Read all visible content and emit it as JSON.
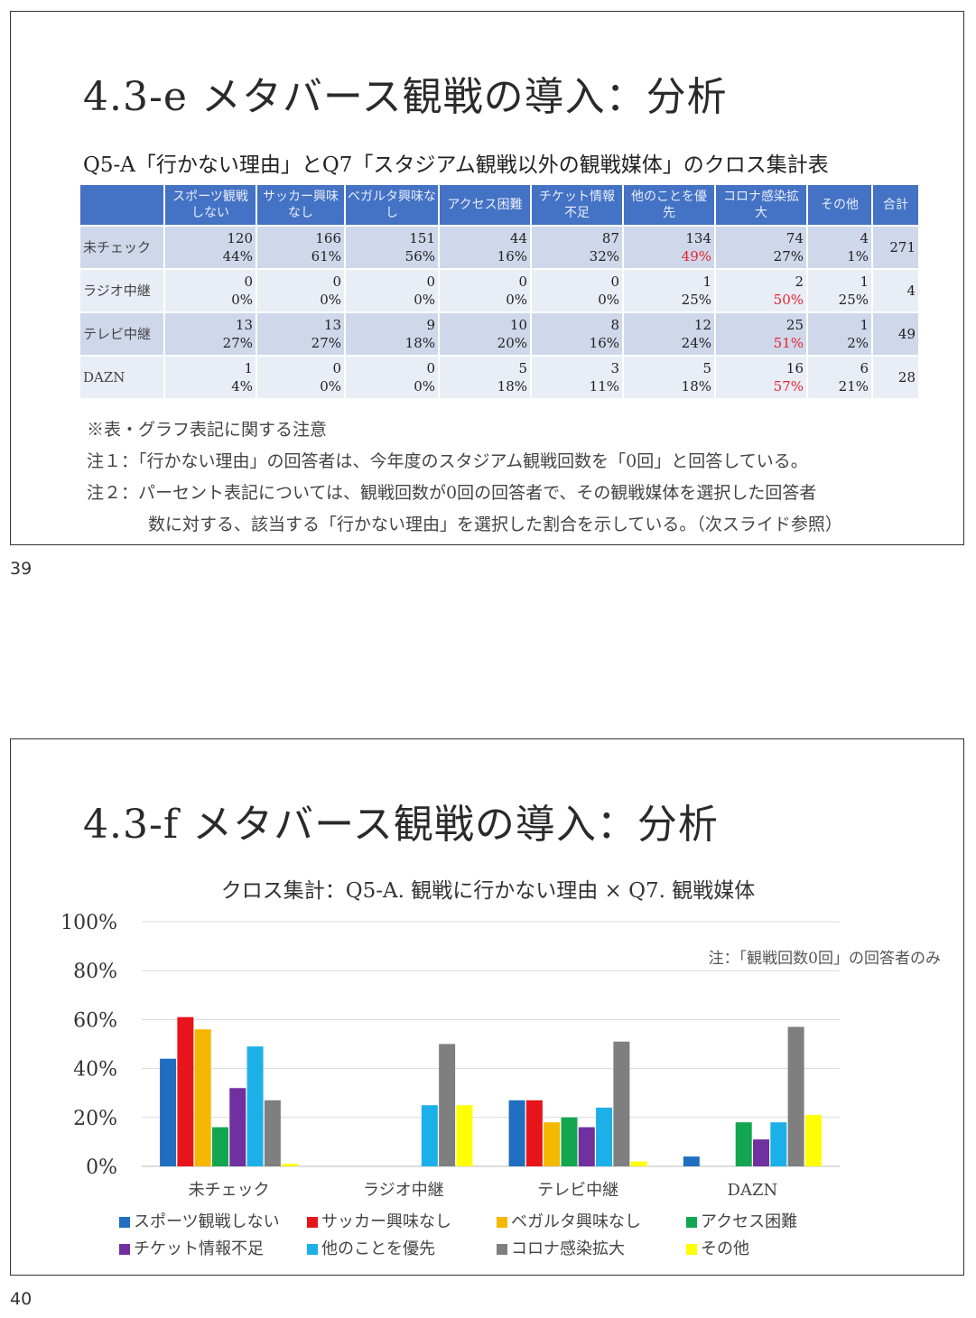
{
  "slide1": {
    "title": "4.3-e メタバース観戦の導入：分析",
    "subtitle": "Q5-A「行かない理由」とQ7「スタジアム観戦以外の観戦媒体」のクロス集計表",
    "table": {
      "headers": [
        "スポーツ観戦しない",
        "サッカー興味なし",
        "ベガルタ興味なし",
        "アクセス困難",
        "チケット情報不足",
        "他のことを優先",
        "コロナ感染拡大",
        "その他",
        "合計"
      ],
      "rows": [
        {
          "label": "未チェック",
          "cells": [
            {
              "n": "120",
              "p": "44%"
            },
            {
              "n": "166",
              "p": "61%"
            },
            {
              "n": "151",
              "p": "56%"
            },
            {
              "n": "44",
              "p": "16%"
            },
            {
              "n": "87",
              "p": "32%"
            },
            {
              "n": "134",
              "p": "49%"
            },
            {
              "n": "74",
              "p": "27%"
            },
            {
              "n": "4",
              "p": "1%"
            }
          ],
          "total": "271"
        },
        {
          "label": "ラジオ中継",
          "cells": [
            {
              "n": "0",
              "p": "0%"
            },
            {
              "n": "0",
              "p": "0%"
            },
            {
              "n": "0",
              "p": "0%"
            },
            {
              "n": "0",
              "p": "0%"
            },
            {
              "n": "0",
              "p": "0%"
            },
            {
              "n": "1",
              "p": "25%"
            },
            {
              "n": "2",
              "p": "50%"
            },
            {
              "n": "1",
              "p": "25%"
            }
          ],
          "total": "4"
        },
        {
          "label": "テレビ中継",
          "cells": [
            {
              "n": "13",
              "p": "27%"
            },
            {
              "n": "13",
              "p": "27%"
            },
            {
              "n": "9",
              "p": "18%"
            },
            {
              "n": "10",
              "p": "20%"
            },
            {
              "n": "8",
              "p": "16%"
            },
            {
              "n": "12",
              "p": "24%"
            },
            {
              "n": "25",
              "p": "51%"
            },
            {
              "n": "1",
              "p": "2%"
            }
          ],
          "total": "49"
        },
        {
          "label": "DAZN",
          "cells": [
            {
              "n": "1",
              "p": "4%"
            },
            {
              "n": "0",
              "p": "0%"
            },
            {
              "n": "0",
              "p": "0%"
            },
            {
              "n": "5",
              "p": "18%"
            },
            {
              "n": "3",
              "p": "11%"
            },
            {
              "n": "5",
              "p": "18%"
            },
            {
              "n": "16",
              "p": "57%"
            },
            {
              "n": "6",
              "p": "21%"
            }
          ],
          "total": "28"
        }
      ],
      "highlight": [
        [
          0,
          5
        ],
        [
          1,
          6
        ],
        [
          2,
          6
        ],
        [
          3,
          6
        ]
      ],
      "highlight_color": "#e8232e",
      "header_color": "#4472c4"
    },
    "notes": {
      "heading": "※表・グラフ表記に関する注意",
      "note1": "注１：「行かない理由」の回答者は、今年度のスタジアム観戦回数を「0回」と回答している。",
      "note2a": "注２：パーセント表記については、観戦回数が0回の回答者で、その観戦媒体を選択した回答者",
      "note2b": "数に対する、該当する「行かない理由」を選択した割合を示している。（次スライド参照）"
    },
    "page_number": "39"
  },
  "slide2": {
    "title": "4.3-f メタバース観戦の導入：分析",
    "page_number": "40"
  },
  "chart_data": {
    "type": "bar",
    "title": "クロス集計：Q5-A. 観戦に行かない理由 × Q7. 観戦媒体",
    "annotation": "注：「観戦回数0回」の回答者のみ",
    "categories": [
      "未チェック",
      "ラジオ中継",
      "テレビ中継",
      "DAZN"
    ],
    "yticks": [
      "0%",
      "20%",
      "40%",
      "60%",
      "80%",
      "100%"
    ],
    "ylim": [
      0,
      100
    ],
    "grid": true,
    "legend_position": "bottom",
    "series": [
      {
        "name": "スポーツ観戦しない",
        "color": "#1f6ebf",
        "values": [
          44,
          0,
          27,
          4
        ]
      },
      {
        "name": "サッカー興味なし",
        "color": "#e8141c",
        "values": [
          61,
          0,
          27,
          0
        ]
      },
      {
        "name": "ベガルタ興味なし",
        "color": "#f5b800",
        "values": [
          56,
          0,
          18,
          0
        ]
      },
      {
        "name": "アクセス困難",
        "color": "#12a650",
        "values": [
          16,
          0,
          20,
          18
        ]
      },
      {
        "name": "チケット情報不足",
        "color": "#7030a0",
        "values": [
          32,
          0,
          16,
          11
        ]
      },
      {
        "name": "他のことを優先",
        "color": "#1cb0e8",
        "values": [
          49,
          25,
          24,
          18
        ]
      },
      {
        "name": "コロナ感染拡大",
        "color": "#7f7f7f",
        "values": [
          27,
          50,
          51,
          57
        ]
      },
      {
        "name": "その他",
        "color": "#ffff00",
        "values": [
          1,
          25,
          2,
          21
        ]
      }
    ]
  }
}
